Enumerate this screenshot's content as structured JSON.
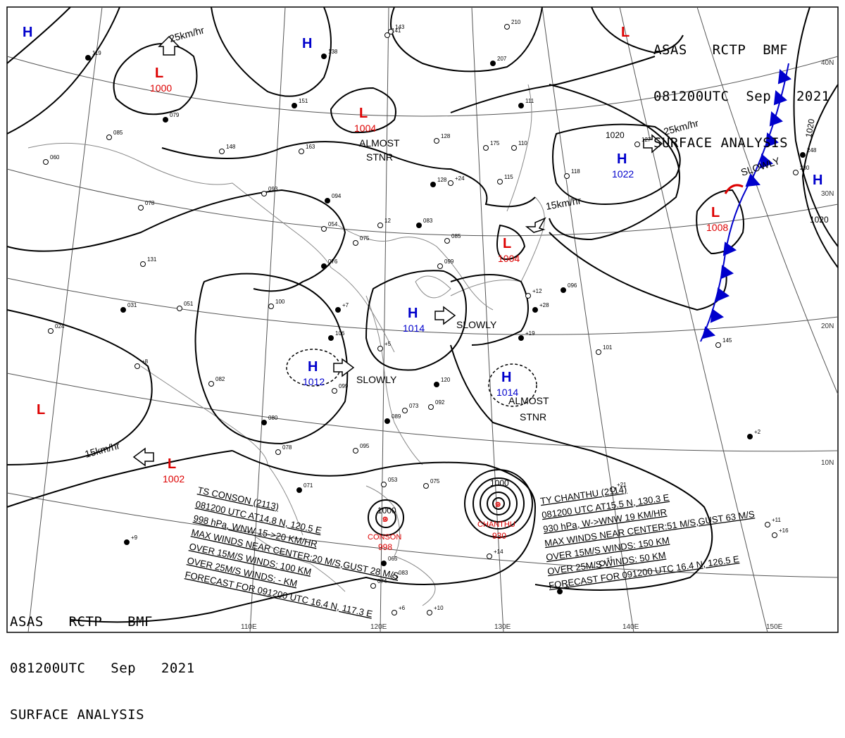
{
  "header_top": {
    "line1": "ASAS   RCTP  BMF",
    "line2": "081200UTC  Sep   2021",
    "line3": "SURFACE ANALYSIS"
  },
  "header_bottom": {
    "line1": "ASAS   RCTP   BMF",
    "line2": "081200UTC   Sep   2021",
    "line3": "SURFACE ANALYSIS"
  },
  "lon_labels": [
    "110E",
    "120E",
    "130E",
    "140E",
    "150E"
  ],
  "lat_labels": [
    "40N",
    "30N",
    "20N",
    "10N"
  ],
  "colors": {
    "high": "#0000cc",
    "low": "#dd0000",
    "front": "#0000cc",
    "isobar": "#000000",
    "grid": "#555555"
  },
  "pressure_centers": [
    {
      "type": "H",
      "value": ""
    },
    {
      "type": "H",
      "value": ""
    },
    {
      "type": "L",
      "value": ""
    },
    {
      "type": "L",
      "value": "1000"
    },
    {
      "type": "L",
      "value": "1004"
    },
    {
      "type": "H",
      "value": "1022"
    },
    {
      "type": "L",
      "value": "1008"
    },
    {
      "type": "H",
      "value": ""
    },
    {
      "type": "L",
      "value": "1004"
    },
    {
      "type": "H",
      "value": "1014"
    },
    {
      "type": "H",
      "value": "1012"
    },
    {
      "type": "H",
      "value": "1014"
    },
    {
      "type": "L",
      "value": ""
    },
    {
      "type": "L",
      "value": "1002"
    }
  ],
  "isobar_labels": [
    "1020",
    "1020",
    "1020",
    "1000",
    "1000"
  ],
  "motion_labels": [
    "25km/hr",
    "ALMOST",
    "STNR",
    "25km/hr",
    "SLOWLY",
    "15km/hr",
    "SLOWLY",
    "SLOWLY",
    "ALMOST",
    "STNR",
    "15km/hr"
  ],
  "typhoon_consou": {
    "name": "CONSON",
    "pressure": "998",
    "lines": [
      "TS CONSON (2113)",
      "081200 UTC  AT14.8 N, 120.5 E",
      "998 hPa, WNW  15->20 KM/HR",
      "MAX WINDS NEAR CENTER:20 M/S,GUST 28 M/S",
      "OVER 15M/S WINDS: 100 KM",
      "OVER 25M/S WINDS: - KM",
      "FORECAST FOR 091200 UTC 16.4 N, 117.3 E"
    ]
  },
  "typhoon_chanthu": {
    "name": "CHANTHU",
    "pressure": "930",
    "lines": [
      "TY CHANTHU (2114)",
      "081200 UTC  AT15.5 N, 130.3 E",
      "930 hPa, W->WNW  19 KM/HR",
      "MAX WINDS NEAR CENTER:51 M/S,GUST 63 M/S",
      "OVER 15M/S WINDS: 150 KM",
      "OVER 25M/S WINDS: 50 KM",
      "FORECAST FOR 091200 UTC 16.4 N, 126.5 E"
    ]
  },
  "station_obs": [
    "119",
    "085",
    "060",
    "079",
    "078",
    "148",
    "151",
    "163",
    "093",
    "094",
    "054",
    "075",
    "076",
    "131",
    "051",
    "031",
    "024",
    "100",
    "106",
    "099",
    "082",
    "080",
    "078",
    "095",
    "071",
    "053",
    "075",
    "065",
    "074",
    "083",
    "089",
    "073",
    "085",
    "083",
    "099",
    "092",
    "120",
    "110",
    "115",
    "111",
    "118",
    "127",
    "096",
    "101",
    "145",
    "248",
    "230",
    "143",
    "138",
    "141",
    "210",
    "207",
    "128",
    "175",
    "128",
    "12",
    "+8",
    "+7",
    "+12",
    "+1",
    "-5",
    "+14",
    "+10",
    "+9",
    "+6",
    "+24",
    "+28",
    "+16",
    "+11",
    "+19",
    "+5",
    "+21",
    "+2"
  ]
}
